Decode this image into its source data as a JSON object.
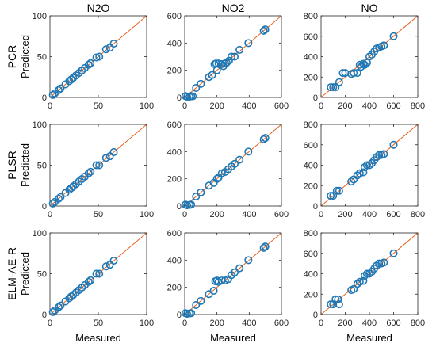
{
  "colors": {
    "marker": "#1f77b4",
    "reference_line": "#e8601c",
    "axes": "#262626"
  },
  "chart_data": [
    {
      "type": "scatter",
      "title": "N2O",
      "row_label": "PCR",
      "ylabel": "Predicted",
      "xlabel": "",
      "xlim": [
        0,
        100
      ],
      "ylim": [
        0,
        100
      ],
      "xticks": [
        "0",
        "50",
        "100"
      ],
      "yticks": [
        "0",
        "50",
        "100"
      ],
      "reference_line": "y = x",
      "points": [
        [
          3,
          3
        ],
        [
          5,
          5
        ],
        [
          9,
          9
        ],
        [
          11,
          11
        ],
        [
          16,
          16
        ],
        [
          20,
          20
        ],
        [
          22,
          22
        ],
        [
          24,
          24
        ],
        [
          27,
          27
        ],
        [
          30,
          30
        ],
        [
          33,
          33
        ],
        [
          36,
          36
        ],
        [
          40,
          40
        ],
        [
          42,
          42
        ],
        [
          48,
          49
        ],
        [
          51,
          50
        ],
        [
          58,
          59
        ],
        [
          62,
          61
        ],
        [
          66,
          66
        ]
      ]
    },
    {
      "type": "scatter",
      "title": "NO2",
      "row_label": "PCR",
      "ylabel": "",
      "xlabel": "",
      "xlim": [
        0,
        600
      ],
      "ylim": [
        0,
        600
      ],
      "xticks": [
        "0",
        "200",
        "400",
        "600"
      ],
      "yticks": [
        "0",
        "200",
        "400",
        "600"
      ],
      "reference_line": "y = x",
      "points": [
        [
          5,
          10
        ],
        [
          15,
          5
        ],
        [
          30,
          5
        ],
        [
          40,
          10
        ],
        [
          50,
          8
        ],
        [
          70,
          70
        ],
        [
          100,
          100
        ],
        [
          150,
          150
        ],
        [
          170,
          165
        ],
        [
          185,
          245
        ],
        [
          195,
          250
        ],
        [
          200,
          200
        ],
        [
          210,
          250
        ],
        [
          230,
          245
        ],
        [
          240,
          230
        ],
        [
          250,
          250
        ],
        [
          260,
          255
        ],
        [
          275,
          270
        ],
        [
          290,
          300
        ],
        [
          310,
          300
        ],
        [
          340,
          350
        ],
        [
          395,
          400
        ],
        [
          490,
          490
        ],
        [
          500,
          500
        ]
      ]
    },
    {
      "type": "scatter",
      "title": "NO",
      "row_label": "PCR",
      "ylabel": "",
      "xlabel": "",
      "xlim": [
        0,
        800
      ],
      "ylim": [
        0,
        800
      ],
      "xticks": [
        "0",
        "200",
        "400",
        "600",
        "800"
      ],
      "yticks": [
        "0",
        "200",
        "400",
        "600",
        "800"
      ],
      "reference_line": "y = x",
      "points": [
        [
          80,
          100
        ],
        [
          100,
          100
        ],
        [
          120,
          100
        ],
        [
          150,
          150
        ],
        [
          180,
          240
        ],
        [
          200,
          240
        ],
        [
          250,
          230
        ],
        [
          270,
          240
        ],
        [
          300,
          240
        ],
        [
          320,
          320
        ],
        [
          330,
          300
        ],
        [
          350,
          330
        ],
        [
          360,
          320
        ],
        [
          380,
          340
        ],
        [
          400,
          400
        ],
        [
          420,
          420
        ],
        [
          440,
          450
        ],
        [
          460,
          480
        ],
        [
          480,
          490
        ],
        [
          500,
          500
        ],
        [
          520,
          510
        ],
        [
          600,
          600
        ]
      ]
    },
    {
      "type": "scatter",
      "title": "",
      "row_label": "PLSR",
      "ylabel": "Predicted",
      "xlabel": "",
      "xlim": [
        0,
        100
      ],
      "ylim": [
        0,
        100
      ],
      "xticks": [
        "0",
        "50",
        "100"
      ],
      "yticks": [
        "0",
        "50",
        "100"
      ],
      "reference_line": "y = x",
      "points": [
        [
          3,
          3
        ],
        [
          5,
          5
        ],
        [
          9,
          9
        ],
        [
          11,
          11
        ],
        [
          16,
          16
        ],
        [
          20,
          20
        ],
        [
          22,
          22
        ],
        [
          24,
          24
        ],
        [
          27,
          27
        ],
        [
          30,
          30
        ],
        [
          33,
          33
        ],
        [
          36,
          36
        ],
        [
          40,
          40
        ],
        [
          42,
          42
        ],
        [
          48,
          50
        ],
        [
          51,
          50
        ],
        [
          58,
          59
        ],
        [
          62,
          61
        ],
        [
          66,
          66
        ]
      ]
    },
    {
      "type": "scatter",
      "title": "",
      "row_label": "PLSR",
      "ylabel": "",
      "xlabel": "",
      "xlim": [
        0,
        600
      ],
      "ylim": [
        0,
        600
      ],
      "xticks": [
        "0",
        "200",
        "400",
        "600"
      ],
      "yticks": [
        "0",
        "200",
        "400",
        "600"
      ],
      "reference_line": "y = x",
      "points": [
        [
          5,
          10
        ],
        [
          15,
          5
        ],
        [
          30,
          8
        ],
        [
          40,
          10
        ],
        [
          70,
          70
        ],
        [
          100,
          100
        ],
        [
          150,
          150
        ],
        [
          180,
          170
        ],
        [
          200,
          200
        ],
        [
          210,
          210
        ],
        [
          230,
          240
        ],
        [
          250,
          250
        ],
        [
          270,
          270
        ],
        [
          290,
          290
        ],
        [
          310,
          310
        ],
        [
          340,
          340
        ],
        [
          395,
          400
        ],
        [
          490,
          490
        ],
        [
          500,
          500
        ]
      ]
    },
    {
      "type": "scatter",
      "title": "",
      "row_label": "PLSR",
      "ylabel": "",
      "xlabel": "",
      "xlim": [
        0,
        800
      ],
      "ylim": [
        0,
        800
      ],
      "xticks": [
        "0",
        "200",
        "400",
        "600",
        "800"
      ],
      "yticks": [
        "0",
        "200",
        "400",
        "600",
        "800"
      ],
      "reference_line": "y = x",
      "points": [
        [
          80,
          100
        ],
        [
          100,
          100
        ],
        [
          130,
          150
        ],
        [
          150,
          150
        ],
        [
          250,
          240
        ],
        [
          270,
          260
        ],
        [
          300,
          300
        ],
        [
          320,
          320
        ],
        [
          350,
          330
        ],
        [
          360,
          380
        ],
        [
          380,
          400
        ],
        [
          400,
          400
        ],
        [
          420,
          420
        ],
        [
          440,
          450
        ],
        [
          460,
          480
        ],
        [
          480,
          500
        ],
        [
          500,
          500
        ],
        [
          520,
          510
        ],
        [
          600,
          600
        ]
      ]
    },
    {
      "type": "scatter",
      "title": "",
      "row_label": "ELM-AE-R",
      "ylabel": "Predicted",
      "xlabel": "Measured",
      "xlim": [
        0,
        100
      ],
      "ylim": [
        0,
        100
      ],
      "xticks": [
        "0",
        "50",
        "100"
      ],
      "yticks": [
        "0",
        "50",
        "100"
      ],
      "reference_line": "y = x",
      "points": [
        [
          3,
          3
        ],
        [
          5,
          5
        ],
        [
          9,
          9
        ],
        [
          11,
          11
        ],
        [
          16,
          16
        ],
        [
          20,
          20
        ],
        [
          22,
          22
        ],
        [
          24,
          24
        ],
        [
          27,
          27
        ],
        [
          30,
          30
        ],
        [
          33,
          33
        ],
        [
          36,
          36
        ],
        [
          40,
          40
        ],
        [
          42,
          42
        ],
        [
          48,
          50
        ],
        [
          51,
          50
        ],
        [
          58,
          59
        ],
        [
          62,
          61
        ],
        [
          66,
          66
        ]
      ]
    },
    {
      "type": "scatter",
      "title": "",
      "row_label": "ELM-AE-R",
      "ylabel": "",
      "xlabel": "Measured",
      "xlim": [
        0,
        600
      ],
      "ylim": [
        0,
        600
      ],
      "xticks": [
        "0",
        "200",
        "400",
        "600"
      ],
      "yticks": [
        "0",
        "200",
        "400",
        "600"
      ],
      "reference_line": "y = x",
      "points": [
        [
          5,
          10
        ],
        [
          15,
          5
        ],
        [
          30,
          8
        ],
        [
          40,
          10
        ],
        [
          70,
          70
        ],
        [
          100,
          100
        ],
        [
          150,
          150
        ],
        [
          180,
          175
        ],
        [
          190,
          245
        ],
        [
          200,
          250
        ],
        [
          210,
          240
        ],
        [
          230,
          250
        ],
        [
          250,
          250
        ],
        [
          270,
          260
        ],
        [
          290,
          290
        ],
        [
          310,
          310
        ],
        [
          340,
          340
        ],
        [
          395,
          400
        ],
        [
          490,
          490
        ],
        [
          500,
          500
        ]
      ]
    },
    {
      "type": "scatter",
      "title": "",
      "row_label": "ELM-AE-R",
      "ylabel": "",
      "xlabel": "Measured",
      "xlim": [
        0,
        800
      ],
      "ylim": [
        0,
        800
      ],
      "xticks": [
        "0",
        "200",
        "400",
        "600",
        "800"
      ],
      "yticks": [
        "0",
        "200",
        "400",
        "600",
        "800"
      ],
      "reference_line": "y = x",
      "points": [
        [
          80,
          100
        ],
        [
          100,
          100
        ],
        [
          120,
          150
        ],
        [
          140,
          150
        ],
        [
          150,
          100
        ],
        [
          250,
          240
        ],
        [
          270,
          250
        ],
        [
          300,
          300
        ],
        [
          320,
          320
        ],
        [
          350,
          330
        ],
        [
          360,
          380
        ],
        [
          380,
          400
        ],
        [
          400,
          400
        ],
        [
          420,
          420
        ],
        [
          440,
          450
        ],
        [
          460,
          480
        ],
        [
          480,
          500
        ],
        [
          500,
          500
        ],
        [
          520,
          510
        ],
        [
          600,
          600
        ]
      ]
    }
  ]
}
